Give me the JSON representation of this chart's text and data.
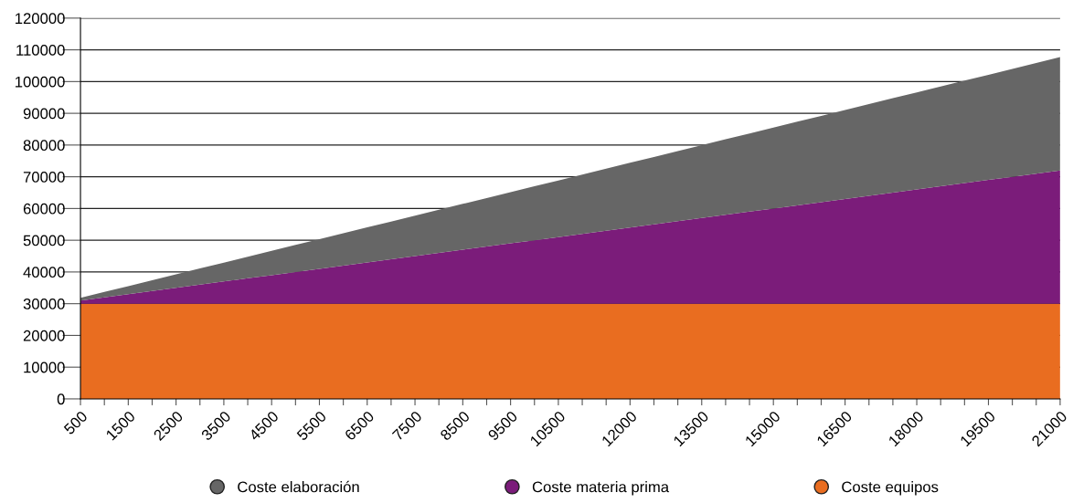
{
  "chart_data": {
    "type": "area",
    "stacked": true,
    "categories": [
      "500",
      null,
      "1500",
      null,
      "2500",
      null,
      "3500",
      null,
      "4500",
      null,
      "5500",
      null,
      "6500",
      null,
      "7500",
      null,
      "8500",
      null,
      "9500",
      null,
      "10500",
      null,
      null,
      "12000",
      null,
      null,
      "13500",
      null,
      null,
      "15000",
      null,
      null,
      "16500",
      null,
      null,
      "18000",
      null,
      null,
      "19500",
      null,
      null,
      "21000"
    ],
    "series": [
      {
        "name": "Coste equipos",
        "color": "#e96d20",
        "values": [
          30000,
          30000,
          30000,
          30000,
          30000,
          30000,
          30000,
          30000,
          30000,
          30000,
          30000,
          30000,
          30000,
          30000,
          30000,
          30000,
          30000,
          30000,
          30000,
          30000,
          30000,
          30000,
          30000,
          30000,
          30000,
          30000,
          30000,
          30000,
          30000,
          30000,
          30000,
          30000,
          30000,
          30000,
          30000,
          30000,
          30000,
          30000,
          30000,
          30000,
          30000,
          30000
        ]
      },
      {
        "name": "Coste materia prima",
        "color": "#7b1c7a",
        "values": [
          1000,
          2000,
          3000,
          4000,
          5000,
          6000,
          7000,
          8000,
          9000,
          10000,
          11000,
          12000,
          13000,
          14000,
          15000,
          16000,
          17000,
          18000,
          19000,
          20000,
          21000,
          22000,
          23000,
          24000,
          25000,
          26000,
          27000,
          28000,
          29000,
          30000,
          31000,
          32000,
          33000,
          34000,
          35000,
          36000,
          37000,
          38000,
          39000,
          40000,
          41000,
          42000
        ]
      },
      {
        "name": "Coste elaboración",
        "color": "#666666",
        "values": [
          850,
          1700,
          2550,
          3400,
          4250,
          5100,
          5950,
          6800,
          7650,
          8500,
          9350,
          10200,
          11050,
          11900,
          12750,
          13600,
          14450,
          15300,
          16150,
          17000,
          17850,
          18700,
          19550,
          20400,
          21250,
          22100,
          22950,
          23800,
          24650,
          25500,
          26350,
          27200,
          28050,
          28900,
          29750,
          30600,
          31450,
          32300,
          33150,
          34000,
          34850,
          35700
        ]
      }
    ],
    "ylim": [
      0,
      120000
    ],
    "yticks": [
      0,
      10000,
      20000,
      30000,
      40000,
      50000,
      60000,
      70000,
      80000,
      90000,
      100000,
      110000,
      120000
    ],
    "grid": "y",
    "legend": "bottom"
  }
}
